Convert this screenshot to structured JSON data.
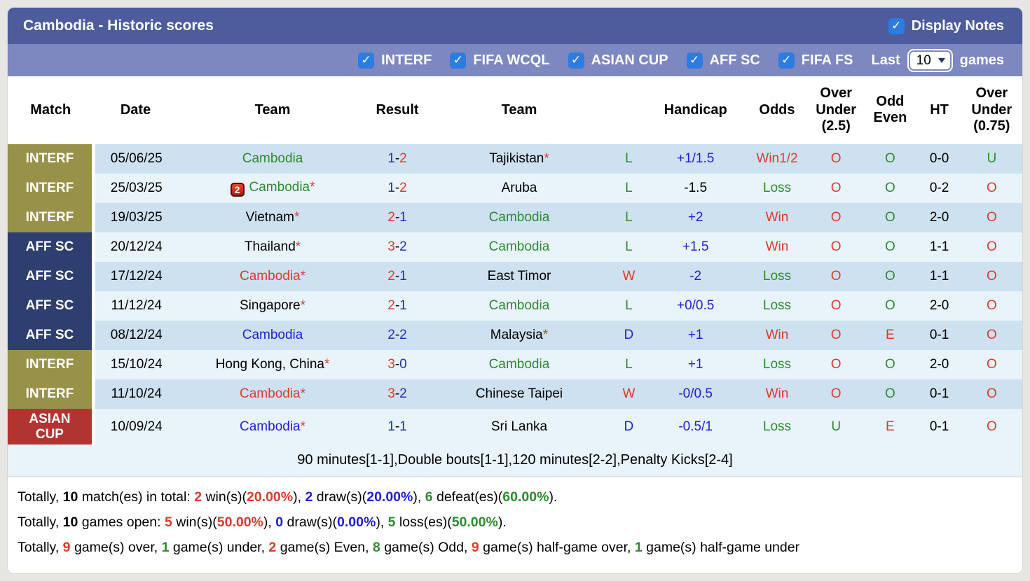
{
  "title_bar": {
    "title": "Cambodia - Historic scores",
    "display_notes_label": "Display Notes",
    "display_notes_checked": true
  },
  "filter_bar": {
    "competitions": [
      {
        "label": "INTERF",
        "checked": true
      },
      {
        "label": "FIFA WCQL",
        "checked": true
      },
      {
        "label": "ASIAN CUP",
        "checked": true
      },
      {
        "label": "AFF SC",
        "checked": true
      },
      {
        "label": "FIFA FS",
        "checked": true
      }
    ],
    "last_label": "Last",
    "games_value": "10",
    "games_label": "games"
  },
  "table": {
    "headers": [
      "Match",
      "Date",
      "Team",
      "Result",
      "Team",
      "",
      "Handicap",
      "Odds",
      "Over Under (2.5)",
      "Odd Even",
      "HT",
      "Over Under (0.75)"
    ],
    "rows": [
      {
        "match": {
          "label": "INTERF",
          "bg": "olive"
        },
        "date": "05/06/25",
        "home": {
          "name": "Cambodia",
          "color": "green",
          "asterisk": false
        },
        "result": {
          "home": "1",
          "home_color": "navy",
          "away": "2",
          "away_color": "red"
        },
        "away": {
          "name": "Tajikistan",
          "color": "black",
          "asterisk": true
        },
        "wld": {
          "text": "L",
          "color": "green"
        },
        "handicap": {
          "text": "+1/1.5",
          "color": "blue"
        },
        "odds": {
          "text": "Win1/2",
          "color": "red"
        },
        "ou25": {
          "text": "O",
          "color": "red"
        },
        "odd_even": {
          "text": "O",
          "color": "green"
        },
        "ht": "0-0",
        "ou075": {
          "text": "U",
          "color": "green"
        }
      },
      {
        "match": {
          "label": "INTERF",
          "bg": "olive"
        },
        "date": "25/03/25",
        "home": {
          "name": "Cambodia",
          "color": "green",
          "asterisk": true,
          "red_cards": "2"
        },
        "result": {
          "home": "1",
          "home_color": "navy",
          "away": "2",
          "away_color": "red"
        },
        "away": {
          "name": "Aruba",
          "color": "black",
          "asterisk": false
        },
        "wld": {
          "text": "L",
          "color": "green"
        },
        "handicap": {
          "text": "-1.5",
          "color": "black"
        },
        "odds": {
          "text": "Loss",
          "color": "green"
        },
        "ou25": {
          "text": "O",
          "color": "red"
        },
        "odd_even": {
          "text": "O",
          "color": "green"
        },
        "ht": "0-2",
        "ou075": {
          "text": "O",
          "color": "red"
        }
      },
      {
        "match": {
          "label": "INTERF",
          "bg": "olive"
        },
        "date": "19/03/25",
        "home": {
          "name": "Vietnam",
          "color": "black",
          "asterisk": true
        },
        "result": {
          "home": "2",
          "home_color": "red",
          "away": "1",
          "away_color": "navy"
        },
        "away": {
          "name": "Cambodia",
          "color": "green",
          "asterisk": false
        },
        "wld": {
          "text": "L",
          "color": "green"
        },
        "handicap": {
          "text": "+2",
          "color": "blue"
        },
        "odds": {
          "text": "Win",
          "color": "red"
        },
        "ou25": {
          "text": "O",
          "color": "red"
        },
        "odd_even": {
          "text": "O",
          "color": "green"
        },
        "ht": "2-0",
        "ou075": {
          "text": "O",
          "color": "red"
        }
      },
      {
        "match": {
          "label": "AFF SC",
          "bg": "navy"
        },
        "date": "20/12/24",
        "home": {
          "name": "Thailand",
          "color": "black",
          "asterisk": true
        },
        "result": {
          "home": "3",
          "home_color": "red",
          "away": "2",
          "away_color": "navy"
        },
        "away": {
          "name": "Cambodia",
          "color": "green",
          "asterisk": false
        },
        "wld": {
          "text": "L",
          "color": "green"
        },
        "handicap": {
          "text": "+1.5",
          "color": "blue"
        },
        "odds": {
          "text": "Win",
          "color": "red"
        },
        "ou25": {
          "text": "O",
          "color": "red"
        },
        "odd_even": {
          "text": "O",
          "color": "green"
        },
        "ht": "1-1",
        "ou075": {
          "text": "O",
          "color": "red"
        }
      },
      {
        "match": {
          "label": "AFF SC",
          "bg": "navy"
        },
        "date": "17/12/24",
        "home": {
          "name": "Cambodia",
          "color": "red",
          "asterisk": true
        },
        "result": {
          "home": "2",
          "home_color": "red",
          "away": "1",
          "away_color": "navy"
        },
        "away": {
          "name": "East Timor",
          "color": "black",
          "asterisk": false
        },
        "wld": {
          "text": "W",
          "color": "red"
        },
        "handicap": {
          "text": "-2",
          "color": "blue"
        },
        "odds": {
          "text": "Loss",
          "color": "green"
        },
        "ou25": {
          "text": "O",
          "color": "red"
        },
        "odd_even": {
          "text": "O",
          "color": "green"
        },
        "ht": "1-1",
        "ou075": {
          "text": "O",
          "color": "red"
        }
      },
      {
        "match": {
          "label": "AFF SC",
          "bg": "navy"
        },
        "date": "11/12/24",
        "home": {
          "name": "Singapore",
          "color": "black",
          "asterisk": true
        },
        "result": {
          "home": "2",
          "home_color": "red",
          "away": "1",
          "away_color": "navy"
        },
        "away": {
          "name": "Cambodia",
          "color": "green",
          "asterisk": false
        },
        "wld": {
          "text": "L",
          "color": "green"
        },
        "handicap": {
          "text": "+0/0.5",
          "color": "blue"
        },
        "odds": {
          "text": "Loss",
          "color": "green"
        },
        "ou25": {
          "text": "O",
          "color": "red"
        },
        "odd_even": {
          "text": "O",
          "color": "green"
        },
        "ht": "2-0",
        "ou075": {
          "text": "O",
          "color": "red"
        }
      },
      {
        "match": {
          "label": "AFF SC",
          "bg": "navy"
        },
        "date": "08/12/24",
        "home": {
          "name": "Cambodia",
          "color": "blue",
          "asterisk": false
        },
        "result": {
          "home": "2",
          "home_color": "navy",
          "away": "2",
          "away_color": "navy"
        },
        "away": {
          "name": "Malaysia",
          "color": "black",
          "asterisk": true
        },
        "wld": {
          "text": "D",
          "color": "blue"
        },
        "handicap": {
          "text": "+1",
          "color": "blue"
        },
        "odds": {
          "text": "Win",
          "color": "red"
        },
        "ou25": {
          "text": "O",
          "color": "red"
        },
        "odd_even": {
          "text": "E",
          "color": "red"
        },
        "ht": "0-1",
        "ou075": {
          "text": "O",
          "color": "red"
        }
      },
      {
        "match": {
          "label": "INTERF",
          "bg": "olive"
        },
        "date": "15/10/24",
        "home": {
          "name": "Hong Kong, China",
          "color": "black",
          "asterisk": true
        },
        "result": {
          "home": "3",
          "home_color": "red",
          "away": "0",
          "away_color": "navy"
        },
        "away": {
          "name": "Cambodia",
          "color": "green",
          "asterisk": false
        },
        "wld": {
          "text": "L",
          "color": "green"
        },
        "handicap": {
          "text": "+1",
          "color": "blue"
        },
        "odds": {
          "text": "Loss",
          "color": "green"
        },
        "ou25": {
          "text": "O",
          "color": "red"
        },
        "odd_even": {
          "text": "O",
          "color": "green"
        },
        "ht": "2-0",
        "ou075": {
          "text": "O",
          "color": "red"
        }
      },
      {
        "match": {
          "label": "INTERF",
          "bg": "olive"
        },
        "date": "11/10/24",
        "home": {
          "name": "Cambodia",
          "color": "red",
          "asterisk": true
        },
        "result": {
          "home": "3",
          "home_color": "red",
          "away": "2",
          "away_color": "navy"
        },
        "away": {
          "name": "Chinese Taipei",
          "color": "black",
          "asterisk": false
        },
        "wld": {
          "text": "W",
          "color": "red"
        },
        "handicap": {
          "text": "-0/0.5",
          "color": "blue"
        },
        "odds": {
          "text": "Win",
          "color": "red"
        },
        "ou25": {
          "text": "O",
          "color": "red"
        },
        "odd_even": {
          "text": "O",
          "color": "green"
        },
        "ht": "0-1",
        "ou075": {
          "text": "O",
          "color": "red"
        }
      },
      {
        "match": {
          "label": "ASIAN CUP",
          "bg": "red"
        },
        "date": "10/09/24",
        "home": {
          "name": "Cambodia",
          "color": "blue",
          "asterisk": true
        },
        "result": {
          "home": "1",
          "home_color": "navy",
          "away": "1",
          "away_color": "navy"
        },
        "away": {
          "name": "Sri Lanka",
          "color": "black",
          "asterisk": false
        },
        "wld": {
          "text": "D",
          "color": "blue"
        },
        "handicap": {
          "text": "-0.5/1",
          "color": "blue"
        },
        "odds": {
          "text": "Loss",
          "color": "green"
        },
        "ou25": {
          "text": "U",
          "color": "green"
        },
        "odd_even": {
          "text": "E",
          "color": "red"
        },
        "ht": "0-1",
        "ou075": {
          "text": "O",
          "color": "red"
        }
      }
    ],
    "note": "90 minutes[1-1],Double bouts[1-1],120 minutes[2-2],Penalty Kicks[2-4]"
  },
  "summary": {
    "lines": [
      [
        {
          "t": "Totally, "
        },
        {
          "t": "10",
          "b": true
        },
        {
          "t": " match(es) in total: "
        },
        {
          "t": "2",
          "c": "red",
          "b": true
        },
        {
          "t": " win(s)("
        },
        {
          "t": "20.00%",
          "c": "red",
          "b": true
        },
        {
          "t": "), "
        },
        {
          "t": "2",
          "c": "blue",
          "b": true
        },
        {
          "t": " draw(s)("
        },
        {
          "t": "20.00%",
          "c": "blue",
          "b": true
        },
        {
          "t": "), "
        },
        {
          "t": "6",
          "c": "green",
          "b": true
        },
        {
          "t": " defeat(es)("
        },
        {
          "t": "60.00%",
          "c": "green",
          "b": true
        },
        {
          "t": ")."
        }
      ],
      [
        {
          "t": "Totally, "
        },
        {
          "t": "10",
          "b": true
        },
        {
          "t": " games open: "
        },
        {
          "t": "5",
          "c": "red",
          "b": true
        },
        {
          "t": " win(s)("
        },
        {
          "t": "50.00%",
          "c": "red",
          "b": true
        },
        {
          "t": "), "
        },
        {
          "t": "0",
          "c": "blue",
          "b": true
        },
        {
          "t": " draw(s)("
        },
        {
          "t": "0.00%",
          "c": "blue",
          "b": true
        },
        {
          "t": "), "
        },
        {
          "t": "5",
          "c": "green",
          "b": true
        },
        {
          "t": " loss(es)("
        },
        {
          "t": "50.00%",
          "c": "green",
          "b": true
        },
        {
          "t": ")."
        }
      ],
      [
        {
          "t": "Totally, "
        },
        {
          "t": "9",
          "c": "red",
          "b": true
        },
        {
          "t": " game(s) over, "
        },
        {
          "t": "1",
          "c": "green",
          "b": true
        },
        {
          "t": " game(s) under, "
        },
        {
          "t": "2",
          "c": "red",
          "b": true
        },
        {
          "t": " game(s) Even, "
        },
        {
          "t": "8",
          "c": "green",
          "b": true
        },
        {
          "t": " game(s) Odd, "
        },
        {
          "t": "9",
          "c": "red",
          "b": true
        },
        {
          "t": " game(s) half-game over, "
        },
        {
          "t": "1",
          "c": "green",
          "b": true
        },
        {
          "t": " game(s) half-game under"
        }
      ]
    ]
  },
  "colors": {
    "green": "#2e8b2e",
    "red": "#e0392b",
    "blue": "#1f1fd9",
    "navy": "#2433ae",
    "black": "#000000",
    "title_bar_bg": "#4d5c9c",
    "filter_bar_bg": "#7d87c0",
    "checkbox_blue": "#2d7ce2",
    "badge_olive": "#97914a",
    "badge_navy": "#2d3e6f",
    "badge_red": "#b23431",
    "row_dark": "#cde1f0",
    "row_light": "#e8f3fa"
  }
}
